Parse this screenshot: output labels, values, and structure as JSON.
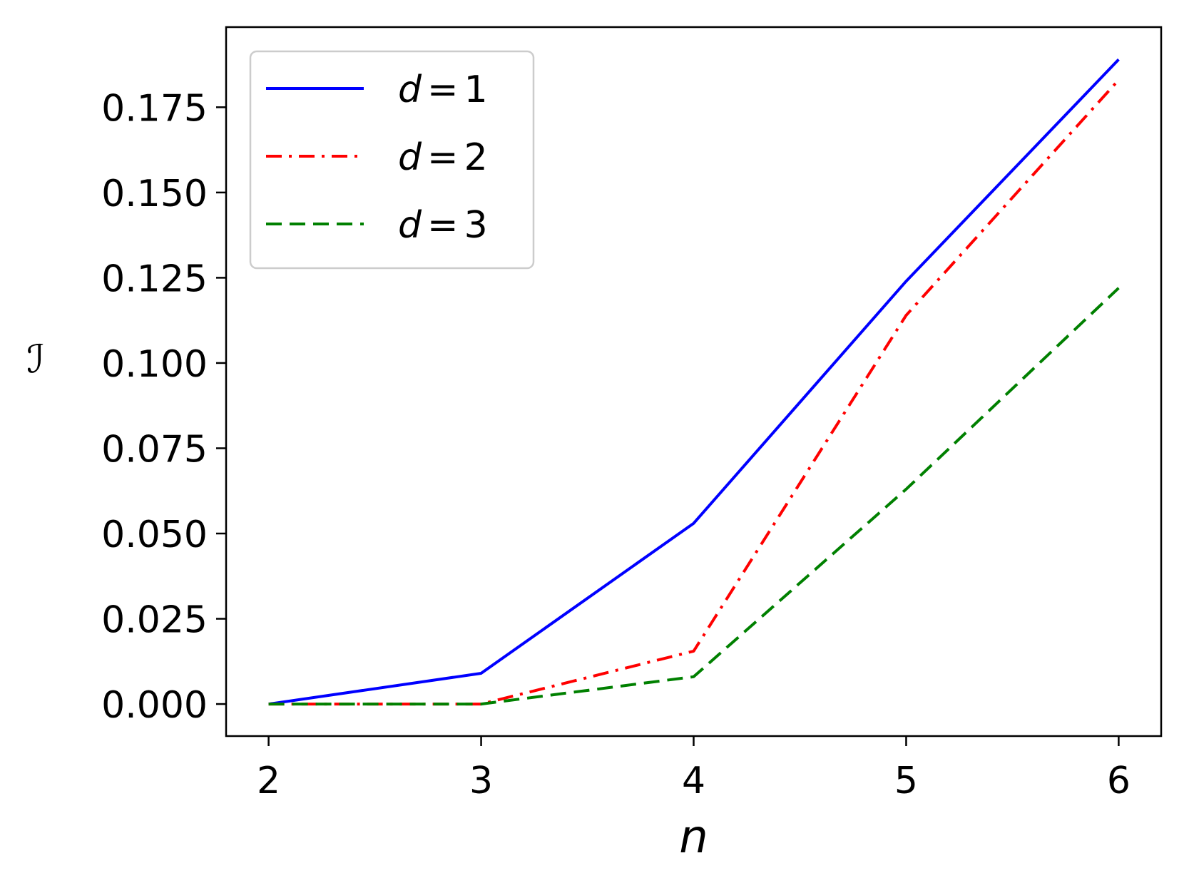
{
  "chart_data": {
    "type": "line",
    "title": "",
    "xlabel": "n",
    "ylabel": "ℐ",
    "x": [
      2,
      3,
      4,
      5,
      6
    ],
    "xticks": [
      "2",
      "3",
      "4",
      "5",
      "6"
    ],
    "yticks": [
      "0.000",
      "0.025",
      "0.050",
      "0.075",
      "0.100",
      "0.125",
      "0.150",
      "0.175"
    ],
    "xlim": [
      1.8,
      6.2
    ],
    "ylim": [
      -0.0094,
      0.1985
    ],
    "grid": false,
    "legend_position": "upper-left",
    "series": [
      {
        "name": "d = 1",
        "legend": {
          "var": "d",
          "eq": "=",
          "val": "1"
        },
        "color": "#0000ff",
        "dash": "solid",
        "values": [
          0.0,
          0.009,
          0.053,
          0.124,
          0.189
        ]
      },
      {
        "name": "d = 2",
        "legend": {
          "var": "d",
          "eq": "=",
          "val": "2"
        },
        "color": "#ff0000",
        "dash": "dashdot",
        "values": [
          0.0,
          0.0,
          0.0155,
          0.114,
          0.183
        ]
      },
      {
        "name": "d = 3",
        "legend": {
          "var": "d",
          "eq": "=",
          "val": "3"
        },
        "color": "#008000",
        "dash": "dashed",
        "values": [
          0.0,
          0.0,
          0.008,
          0.063,
          0.122
        ]
      }
    ]
  }
}
